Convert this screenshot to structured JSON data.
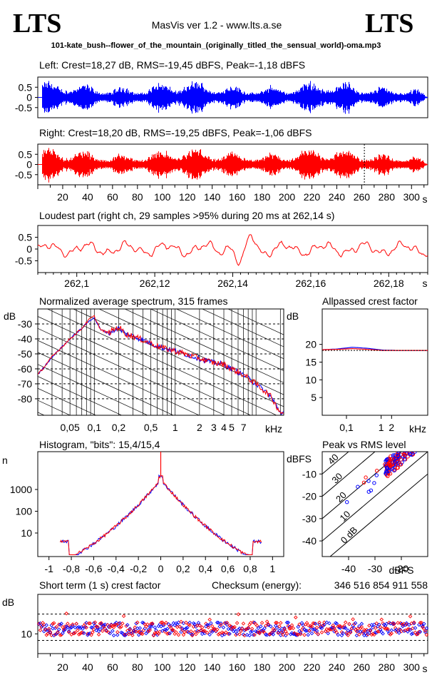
{
  "header": {
    "logo_left": "LTS",
    "logo_right": "LTS",
    "app_title": "MasVis ver 1.2 - www.lts.a.se",
    "filename": "101-kate_bush--flower_of_the_mountain_(originally_titled_the_sensual_world)-oma.mp3"
  },
  "colors": {
    "left": "#0000ff",
    "right": "#ff0000",
    "grid": "#000000"
  },
  "chart_data": [
    {
      "id": "waveform-left",
      "type": "area",
      "title": "Left: Crest=18,27 dB, RMS=-19,45 dBFS, Peak=-1,18 dBFS",
      "yticks": [
        "0.5",
        "0",
        "-0.5"
      ],
      "ylim": [
        -1,
        1
      ],
      "xlim": [
        0,
        313
      ],
      "series": [
        {
          "name": "Left",
          "color": "#0000ff"
        }
      ]
    },
    {
      "id": "waveform-right",
      "type": "area",
      "title": "Right: Crest=18,20 dB, RMS=-19,25 dBFS, Peak=-1,06 dBFS",
      "yticks": [
        "0.5",
        "0",
        "-0.5"
      ],
      "ylim": [
        -1,
        1
      ],
      "xlim": [
        0,
        313
      ],
      "xticks": [
        "20",
        "40",
        "60",
        "80",
        "100",
        "120",
        "140",
        "160",
        "180",
        "200",
        "220",
        "240",
        "260",
        "280",
        "300"
      ],
      "xunit": "s",
      "marker_x": 262.14,
      "series": [
        {
          "name": "Right",
          "color": "#ff0000"
        }
      ]
    },
    {
      "id": "loudest-part",
      "type": "line",
      "title": "Loudest part (right ch, 29 samples >95% during 20 ms at 262,14 s)",
      "yticks": [
        "0.5",
        "0",
        "-0.5"
      ],
      "ylim": [
        -1,
        1
      ],
      "xlim": [
        262.09,
        262.19
      ],
      "xticks": [
        "262,1",
        "262,12",
        "262,14",
        "262,16",
        "262,18"
      ],
      "xunit": "s",
      "series": [
        {
          "name": "Right",
          "color": "#ff0000"
        }
      ]
    },
    {
      "id": "spectrum",
      "type": "line",
      "title": "Normalized average spectrum, 315 frames",
      "ylabel": "dB",
      "yticks": [
        "-30",
        "-40",
        "-50",
        "-60",
        "-70",
        "-80"
      ],
      "ylim": [
        -91,
        -20
      ],
      "xticks": [
        "0,05",
        "0,1",
        "0,2",
        "0,5",
        "1",
        "2",
        "3",
        "4",
        "5",
        "7"
      ],
      "xunit": "kHz",
      "x": [
        0.02,
        0.03,
        0.05,
        0.07,
        0.09,
        0.1,
        0.12,
        0.15,
        0.2,
        0.25,
        0.3,
        0.5,
        0.7,
        1,
        1.5,
        2,
        3,
        4,
        5,
        7,
        10,
        15,
        20
      ],
      "series": [
        {
          "name": "Left",
          "color": "#0000ff",
          "values": [
            -64,
            -52,
            -40,
            -33,
            -27,
            -26,
            -34,
            -36,
            -33,
            -37,
            -38,
            -43,
            -46,
            -48,
            -51,
            -53,
            -56,
            -57,
            -60,
            -64,
            -70,
            -78,
            -89
          ]
        },
        {
          "name": "Right",
          "color": "#ff0000",
          "values": [
            -64,
            -52,
            -40,
            -33,
            -26,
            -25,
            -34,
            -36,
            -32,
            -37,
            -38,
            -43,
            -46,
            -48,
            -51,
            -53,
            -56,
            -57,
            -60,
            -64,
            -70,
            -78,
            -89
          ]
        }
      ]
    },
    {
      "id": "allpassed-crest",
      "type": "line",
      "title": "Allpassed crest factor",
      "ylabel": "dB",
      "yticks": [
        "20",
        "15",
        "10",
        "5"
      ],
      "ylim": [
        0,
        30
      ],
      "xticks": [
        "0,1",
        "1",
        "2"
      ],
      "xunit": "kHz",
      "series": [
        {
          "name": "Left",
          "color": "#0000ff",
          "values": [
            18.5,
            18.7,
            19.2,
            18.9,
            18.4,
            18.3,
            18.3,
            18.3
          ]
        },
        {
          "name": "Right",
          "color": "#ff0000",
          "values": [
            18.5,
            18.6,
            18.8,
            18.6,
            18.3,
            18.3,
            18.3,
            18.3
          ]
        }
      ]
    },
    {
      "id": "histogram",
      "type": "line",
      "title": "Histogram, \"bits\": 15,4/15,4",
      "ylabel": "n",
      "yticks": [
        "1000",
        "100",
        "10"
      ],
      "yscale": "log",
      "xticks": [
        "-1",
        "-0,8",
        "-0,6",
        "-0,4",
        "-0,2",
        "0",
        "0,2",
        "0,4",
        "0,6",
        "0,8",
        "1"
      ],
      "xlim": [
        -1.1,
        1.1
      ]
    },
    {
      "id": "peak-vs-rms",
      "type": "scatter",
      "title": "Peak vs RMS level",
      "ylabel": "dBFS",
      "xlabel": "dBFS",
      "yticks": [
        "-10",
        "-20",
        "-30",
        "-40"
      ],
      "xticks": [
        "-40",
        "-30",
        "-20"
      ],
      "diagonal_labels": [
        "40",
        "30",
        "20",
        "10",
        "0 dB"
      ],
      "xlim": [
        -50,
        -10
      ],
      "ylim": [
        -47,
        0
      ]
    },
    {
      "id": "short-term-crest",
      "type": "scatter",
      "title": "Short term (1 s) crest factor",
      "checksum_label": "Checksum (energy):",
      "checksum_value": "346 516 854 911 558",
      "ylabel": "dB",
      "yticks": [
        "10"
      ],
      "xticks": [
        "20",
        "40",
        "60",
        "80",
        "100",
        "120",
        "140",
        "160",
        "180",
        "200",
        "220",
        "240",
        "260",
        "280",
        "300"
      ],
      "xunit": "s",
      "xlim": [
        0,
        313
      ]
    }
  ]
}
